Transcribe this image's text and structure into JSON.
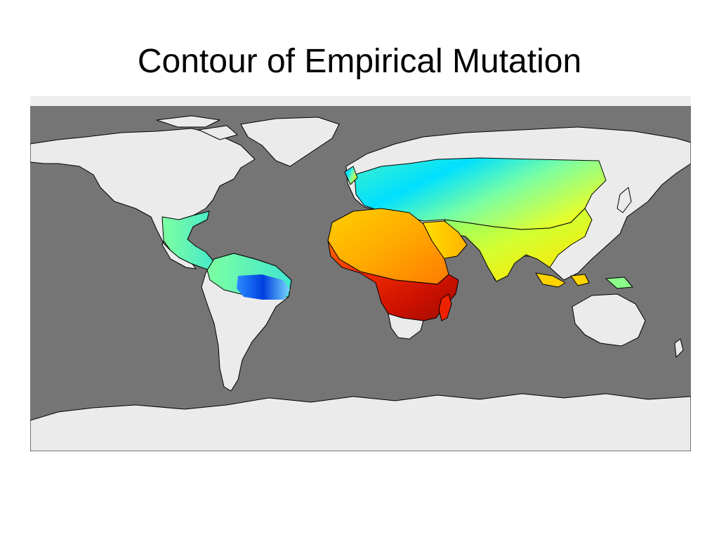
{
  "slide": {
    "title": "Contour of Empirical Mutation"
  },
  "map": {
    "projection": "equirectangular world map",
    "ocean_color": "#757575",
    "land_color": "#ebebeb",
    "border_color": "#000000",
    "colormap": "jet",
    "colorbar_visible": false,
    "high_value_regions": [
      "West Africa",
      "Central Africa",
      "Southern Africa",
      "Madagascar"
    ],
    "mid_value_regions": [
      "North Africa",
      "Arabia",
      "South Asia",
      "China",
      "Southeast Asia",
      "Indonesia"
    ],
    "low_value_regions": [
      "Northern Amazon"
    ],
    "low_mid_value_regions": [
      "Europe",
      "Central Asia",
      "Mexico",
      "Central America",
      "Northern South America"
    ]
  }
}
